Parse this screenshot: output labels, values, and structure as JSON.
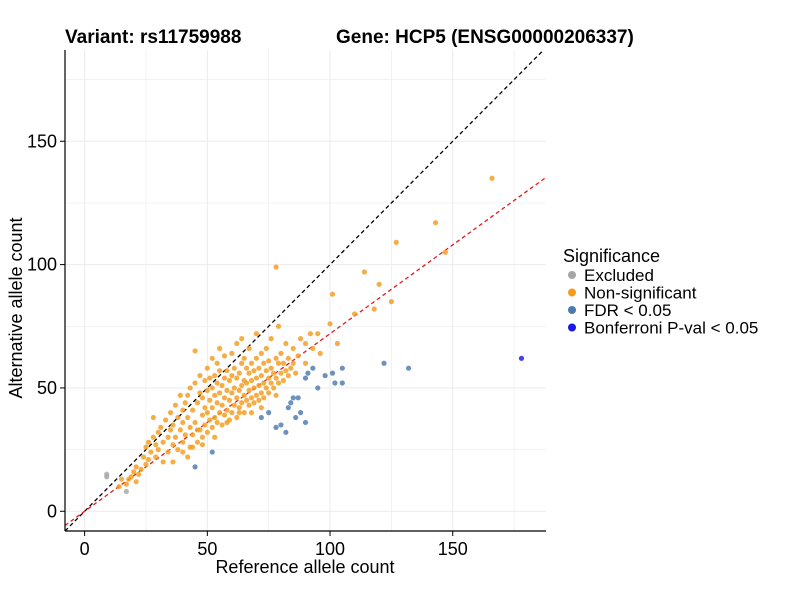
{
  "chart_data": {
    "type": "scatter",
    "title_left": "Variant: rs11759988",
    "title_right": "Gene: HCP5 (ENSG00000206337)",
    "xlabel": "Reference allele count",
    "ylabel": "Alternative allele count",
    "xlim": [
      -8,
      188
    ],
    "ylim": [
      -8,
      187
    ],
    "xticks": [
      0,
      50,
      100,
      150
    ],
    "yticks": [
      0,
      50,
      100,
      150
    ],
    "grid": true,
    "legend_title": "Significance",
    "legend_position": "right",
    "reference_lines": [
      {
        "name": "identity",
        "slope": 1,
        "intercept": 0,
        "color": "#000000",
        "dash": true
      },
      {
        "name": "fit",
        "slope": 0.72,
        "intercept": 0,
        "color": "#e41a1c",
        "dash": true
      }
    ],
    "series": [
      {
        "name": "Excluded",
        "color": "#a6a6a6",
        "points": [
          [
            9,
            14
          ],
          [
            9,
            15
          ],
          [
            17,
            8
          ]
        ]
      },
      {
        "name": "Non-significant",
        "color": "#f39c1f",
        "points": [
          [
            14,
            10
          ],
          [
            15,
            13
          ],
          [
            17,
            11
          ],
          [
            18,
            13
          ],
          [
            19,
            14
          ],
          [
            20,
            16
          ],
          [
            21,
            12
          ],
          [
            21,
            18
          ],
          [
            22,
            15
          ],
          [
            23,
            17
          ],
          [
            24,
            22
          ],
          [
            25,
            19
          ],
          [
            25,
            26
          ],
          [
            26,
            21
          ],
          [
            26,
            28
          ],
          [
            27,
            24
          ],
          [
            28,
            30
          ],
          [
            28,
            38
          ],
          [
            29,
            22
          ],
          [
            29,
            27
          ],
          [
            30,
            25
          ],
          [
            30,
            32
          ],
          [
            31,
            34
          ],
          [
            32,
            20
          ],
          [
            32,
            28
          ],
          [
            33,
            37
          ],
          [
            34,
            24
          ],
          [
            34,
            30
          ],
          [
            35,
            33
          ],
          [
            35,
            40
          ],
          [
            36,
            27
          ],
          [
            36,
            35
          ],
          [
            37,
            30
          ],
          [
            37,
            43
          ],
          [
            38,
            25
          ],
          [
            38,
            38
          ],
          [
            39,
            33
          ],
          [
            39,
            47
          ],
          [
            40,
            28
          ],
          [
            40,
            36
          ],
          [
            40,
            41
          ],
          [
            41,
            31
          ],
          [
            41,
            44
          ],
          [
            42,
            22
          ],
          [
            42,
            38
          ],
          [
            42,
            47
          ],
          [
            43,
            26
          ],
          [
            43,
            34
          ],
          [
            43,
            50
          ],
          [
            44,
            31
          ],
          [
            44,
            41
          ],
          [
            45,
            36
          ],
          [
            45,
            52
          ],
          [
            45,
            65
          ],
          [
            46,
            28
          ],
          [
            46,
            44
          ],
          [
            47,
            33
          ],
          [
            47,
            48
          ],
          [
            47,
            55
          ],
          [
            48,
            30
          ],
          [
            48,
            39
          ],
          [
            48,
            46
          ],
          [
            49,
            35
          ],
          [
            49,
            42
          ],
          [
            49,
            53
          ],
          [
            50,
            32
          ],
          [
            50,
            40
          ],
          [
            50,
            49
          ],
          [
            50,
            58
          ],
          [
            51,
            37
          ],
          [
            51,
            45
          ],
          [
            51,
            54
          ],
          [
            52,
            34
          ],
          [
            52,
            42
          ],
          [
            52,
            50
          ],
          [
            52,
            62
          ],
          [
            53,
            38
          ],
          [
            53,
            47
          ],
          [
            53,
            55
          ],
          [
            54,
            36
          ],
          [
            54,
            44
          ],
          [
            54,
            52
          ],
          [
            54,
            60
          ],
          [
            55,
            40
          ],
          [
            55,
            48
          ],
          [
            55,
            57
          ],
          [
            55,
            66
          ],
          [
            56,
            35
          ],
          [
            56,
            43
          ],
          [
            56,
            51
          ],
          [
            57,
            39
          ],
          [
            57,
            46
          ],
          [
            57,
            54
          ],
          [
            57,
            63
          ],
          [
            58,
            41
          ],
          [
            58,
            49
          ],
          [
            58,
            57
          ],
          [
            59,
            37
          ],
          [
            59,
            45
          ],
          [
            59,
            53
          ],
          [
            60,
            40
          ],
          [
            60,
            48
          ],
          [
            60,
            55
          ],
          [
            60,
            64
          ],
          [
            61,
            43
          ],
          [
            61,
            50
          ],
          [
            61,
            58
          ],
          [
            62,
            38
          ],
          [
            62,
            46
          ],
          [
            62,
            54
          ],
          [
            62,
            68
          ],
          [
            63,
            42
          ],
          [
            63,
            49
          ],
          [
            63,
            56
          ],
          [
            64,
            44
          ],
          [
            64,
            51
          ],
          [
            64,
            60
          ],
          [
            64,
            70
          ],
          [
            65,
            40
          ],
          [
            65,
            47
          ],
          [
            65,
            53
          ],
          [
            65,
            62
          ],
          [
            66,
            45
          ],
          [
            66,
            52
          ],
          [
            66,
            58
          ],
          [
            67,
            43
          ],
          [
            67,
            49
          ],
          [
            67,
            56
          ],
          [
            67,
            66
          ],
          [
            68,
            46
          ],
          [
            68,
            53
          ],
          [
            68,
            60
          ],
          [
            69,
            44
          ],
          [
            69,
            50
          ],
          [
            69,
            57
          ],
          [
            70,
            47
          ],
          [
            70,
            54
          ],
          [
            70,
            62
          ],
          [
            70,
            72
          ],
          [
            71,
            45
          ],
          [
            71,
            51
          ],
          [
            71,
            58
          ],
          [
            72,
            48
          ],
          [
            72,
            55
          ],
          [
            72,
            64
          ],
          [
            73,
            46
          ],
          [
            73,
            52
          ],
          [
            73,
            60
          ],
          [
            74,
            50
          ],
          [
            74,
            57
          ],
          [
            74,
            66
          ],
          [
            75,
            48
          ],
          [
            75,
            54
          ],
          [
            75,
            61
          ],
          [
            76,
            52
          ],
          [
            76,
            58
          ],
          [
            76,
            70
          ],
          [
            77,
            50
          ],
          [
            77,
            56
          ],
          [
            78,
            47
          ],
          [
            78,
            54
          ],
          [
            78,
            62
          ],
          [
            79,
            52
          ],
          [
            79,
            60
          ],
          [
            79,
            75
          ],
          [
            80,
            56
          ],
          [
            80,
            64
          ],
          [
            81,
            53
          ],
          [
            81,
            60
          ],
          [
            82,
            57
          ],
          [
            82,
            68
          ],
          [
            83,
            55
          ],
          [
            83,
            62
          ],
          [
            84,
            58
          ],
          [
            85,
            60
          ],
          [
            85,
            66
          ],
          [
            86,
            56
          ],
          [
            87,
            63
          ],
          [
            88,
            70
          ],
          [
            90,
            60
          ],
          [
            90,
            68
          ],
          [
            92,
            72
          ],
          [
            93,
            66
          ],
          [
            78,
            99
          ],
          [
            95,
            72
          ],
          [
            96,
            64
          ],
          [
            100,
            76
          ],
          [
            101,
            88
          ],
          [
            103,
            68
          ],
          [
            110,
            80
          ],
          [
            114,
            97
          ],
          [
            118,
            82
          ],
          [
            120,
            92
          ],
          [
            125,
            85
          ],
          [
            127,
            109
          ],
          [
            143,
            117
          ],
          [
            147,
            105
          ],
          [
            166,
            135
          ],
          [
            36,
            20
          ],
          [
            40,
            24
          ],
          [
            44,
            26
          ],
          [
            48,
            27
          ],
          [
            46,
            33
          ],
          [
            53,
            30
          ],
          [
            58,
            36
          ],
          [
            63,
            40
          ],
          [
            68,
            40
          ],
          [
            72,
            42
          ]
        ]
      },
      {
        "name": "FDR < 0.05",
        "color": "#4d7ab0",
        "points": [
          [
            45,
            18
          ],
          [
            52,
            24
          ],
          [
            72,
            38
          ],
          [
            75,
            40
          ],
          [
            78,
            34
          ],
          [
            80,
            35
          ],
          [
            82,
            32
          ],
          [
            83,
            42
          ],
          [
            84,
            44
          ],
          [
            85,
            46
          ],
          [
            86,
            38
          ],
          [
            87,
            46
          ],
          [
            88,
            40
          ],
          [
            90,
            36
          ],
          [
            90,
            54
          ],
          [
            91,
            56
          ],
          [
            93,
            58
          ],
          [
            95,
            50
          ],
          [
            98,
            55
          ],
          [
            101,
            56
          ],
          [
            102,
            52
          ],
          [
            105,
            52
          ],
          [
            105,
            58
          ],
          [
            122,
            60
          ],
          [
            132,
            58
          ]
        ]
      },
      {
        "name": "Bonferroni P-val < 0.05",
        "color": "#1a1ae6",
        "points": [
          [
            178,
            62
          ]
        ]
      }
    ]
  }
}
